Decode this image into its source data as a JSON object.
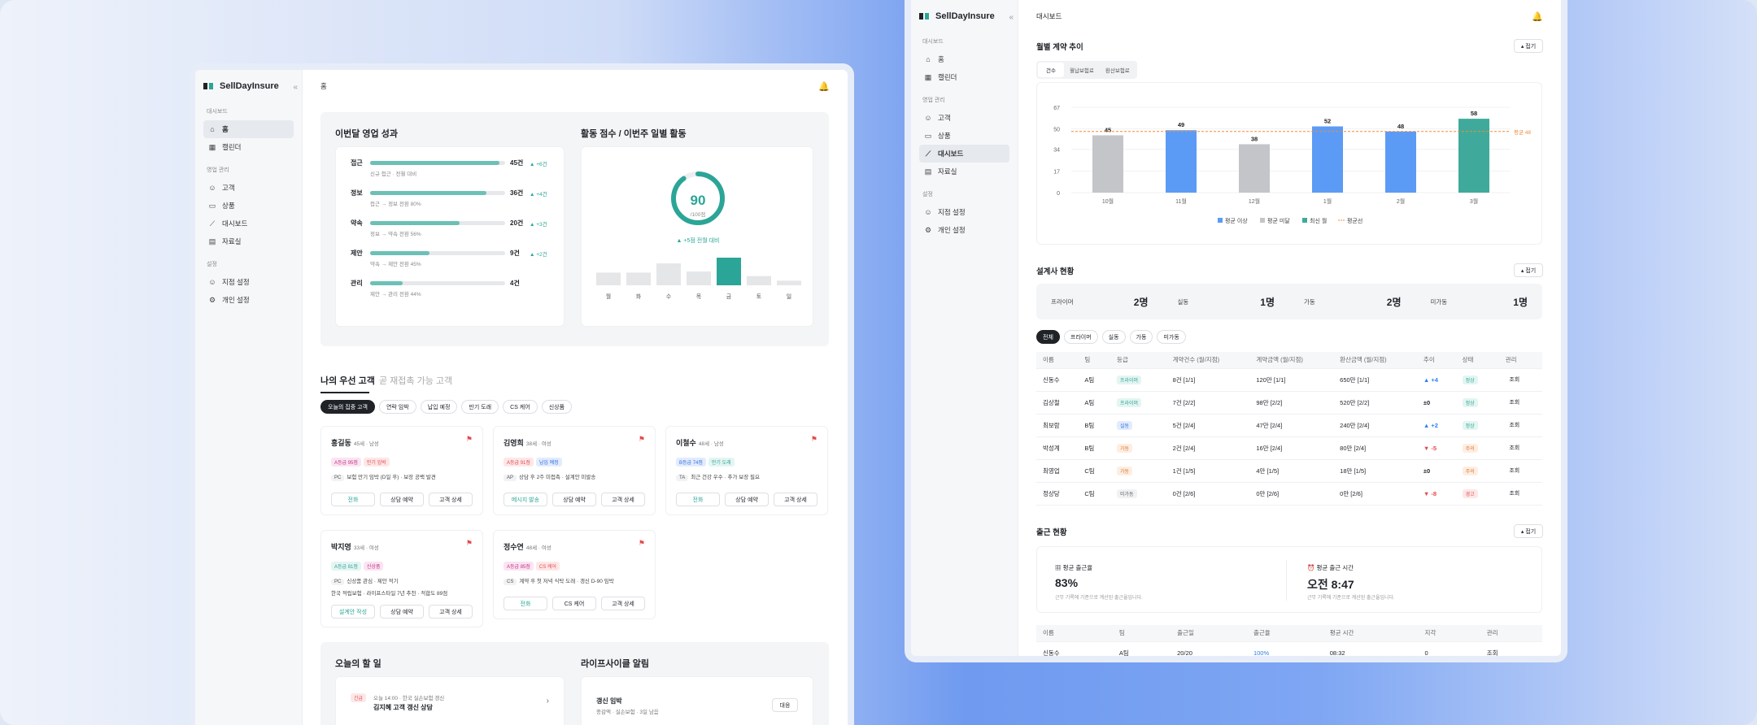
{
  "brand": "SellDayInsure",
  "sidebar": {
    "sec1": "대시보드",
    "sec2": "영업 관리",
    "sec3": "설정",
    "items_a": [
      {
        "label": "홈",
        "icon": "home-icon"
      },
      {
        "label": "캘린더",
        "icon": "calendar-icon"
      },
      {
        "label": "고객",
        "icon": "user-icon"
      },
      {
        "label": "상품",
        "icon": "book-icon"
      },
      {
        "label": "대시보드",
        "icon": "chart-icon"
      },
      {
        "label": "자료실",
        "icon": "file-icon"
      },
      {
        "label": "지점 설정",
        "icon": "user-icon"
      },
      {
        "label": "개인 설정",
        "icon": "gear-icon"
      }
    ]
  },
  "a": {
    "title": "홈",
    "perf": {
      "title": "이번달 영업 성과",
      "rows": [
        {
          "label": "접근",
          "value": "45건",
          "delta": "▲ +6건",
          "sub": "신규 접근 · 전월 대비",
          "fill": 0.96
        },
        {
          "label": "정보",
          "value": "36건",
          "delta": "▲ +4건",
          "sub": "접근 → 정보 전환 80%",
          "fill": 0.86
        },
        {
          "label": "약속",
          "value": "20건",
          "delta": "▲ +3건",
          "sub": "정보 → 약속 전환 56%",
          "fill": 0.66
        },
        {
          "label": "제안",
          "value": "9건",
          "delta": "▲ +2건",
          "sub": "약속 → 제안 전환 45%",
          "fill": 0.44
        },
        {
          "label": "관리",
          "value": "4건",
          "delta": "",
          "sub": "제안 → 관리 전환 44%",
          "fill": 0.24
        }
      ]
    },
    "activity": {
      "title": "활동 점수 / 이번주 일별 활동",
      "score": "90",
      "score_unit": "/100점",
      "score_frac": 0.9,
      "delta": "▲ +5점 전월 대비",
      "days": [
        "월",
        "화",
        "수",
        "목",
        "금",
        "토",
        "일"
      ],
      "day_vals": [
        11,
        11,
        19,
        12,
        24,
        8,
        4
      ],
      "day_max": 24
    },
    "tabs": [
      "나의 우선 고객",
      "곧 재접촉 가능 고객"
    ],
    "filters": [
      "오늘의 집중 고객",
      "연락 임박",
      "납입 예정",
      "만기 도래",
      "CS 케어",
      "신상품"
    ],
    "customers": [
      {
        "name": "홍길동",
        "meta": "45세 · 남성",
        "tags": [
          "A등급 95점",
          "만기 임박"
        ],
        "code": "PC",
        "note": "보험 만기 임박 (D일 후) · 보장 공백 발견",
        "btns": [
          "전화",
          "상담 예약",
          "고객 상세"
        ]
      },
      {
        "name": "김영희",
        "meta": "38세 · 여성",
        "tags": [
          "A등급 91점",
          "납입 예정"
        ],
        "code": "AP",
        "note": "상담 후 2주 미접촉 · 설계안 미발송",
        "btns": [
          "메시지 발송",
          "상담 예약",
          "고객 상세"
        ]
      },
      {
        "name": "이철수",
        "meta": "48세 · 남성",
        "tags": [
          "B등급 74점",
          "만기 도래"
        ],
        "code": "TA",
        "note": "최근 건강 우수 · 추가 보장 필요",
        "btns": [
          "전화",
          "상담 예약",
          "고객 상세"
        ]
      },
      {
        "name": "박지영",
        "meta": "33세 · 여성",
        "tags": [
          "A등급 81점",
          "신상품"
        ],
        "code": "PC",
        "note": "신상품 관심 · 제안 적기",
        "note2": "한국 적립보험 · 라이프스타일 7년 추천 · 적합도 89점",
        "btns": [
          "설계안 작성",
          "상담 예약",
          "고객 상세"
        ]
      },
      {
        "name": "정수연",
        "meta": "48세 · 여성",
        "tags": [
          "A등급 85점",
          "CS 케어"
        ],
        "code": "CS",
        "note": "계약 후 첫 저녁 식탁 도래 · 갱신 D-90 임박",
        "btns": [
          "전화",
          "CS 케어",
          "고객 상세"
        ]
      }
    ],
    "todo": {
      "title": "오늘의 할 일",
      "badge": "긴급",
      "time": "오늘 14:00 · 한국 실손보험 갱신",
      "task": "김지혜 고객 갱신 상담"
    },
    "life": {
      "title": "라이프사이클 알림",
      "item": "갱신 임박",
      "sub": "종감액 · 실손보험 · 3일 남음",
      "btn": "대응"
    }
  },
  "b": {
    "title": "대시보드",
    "chart_title": "월별 계약 추이",
    "fold": "접기",
    "chart_tabs": [
      "건수",
      "월납보험료",
      "환산보험료"
    ],
    "chart_data": {
      "type": "bar",
      "categories": [
        "10월",
        "11월",
        "12월",
        "1월",
        "2월",
        "3월"
      ],
      "values": [
        45,
        49,
        38,
        52,
        48,
        58
      ],
      "ylim": [
        0,
        67
      ],
      "yticks": [
        0,
        17,
        34,
        50,
        67
      ],
      "avg": 48,
      "avg_label": "평균 48",
      "legend": [
        "평균 이상",
        "평균 미달",
        "최신 월",
        "평균선"
      ],
      "colors": {
        "above": "#5b9bf5",
        "below": "#c3c5c9",
        "latest": "#3faa9b",
        "avg": "#f08a3c"
      },
      "kinds": [
        "below",
        "above",
        "below",
        "above",
        "above",
        "latest"
      ]
    },
    "planners": {
      "title": "설계사 현황",
      "stats": [
        {
          "label": "프라이머",
          "value": "2명"
        },
        {
          "label": "실동",
          "value": "1명"
        },
        {
          "label": "가동",
          "value": "2명"
        },
        {
          "label": "미가동",
          "value": "1명"
        }
      ],
      "filters": [
        "전체",
        "프라이머",
        "실동",
        "가동",
        "미가동"
      ],
      "cols": [
        "이름",
        "팀",
        "등급",
        "계약건수 (월/지점)",
        "계약금액 (월/지점)",
        "환산금액 (월/지점)",
        "추이",
        "상태",
        "관리"
      ],
      "rows": [
        [
          "신동수",
          "A팀",
          "프라이머",
          "8건 [1/1]",
          "120만 [1/1]",
          "650만 [1/1]",
          "▲ +4",
          "정상",
          "조회"
        ],
        [
          "김상철",
          "A팀",
          "프라이머",
          "7건 [2/2]",
          "98만 [2/2]",
          "520만 [2/2]",
          "±0",
          "정상",
          "조회"
        ],
        [
          "최보람",
          "B팀",
          "실동",
          "5건 [2/4]",
          "47만 [2/4]",
          "240만 [2/4]",
          "▲ +2",
          "정상",
          "조회"
        ],
        [
          "박성계",
          "B팀",
          "가동",
          "2건 [2/4]",
          "16만 [2/4]",
          "80만 [2/4]",
          "▼ -5",
          "주의",
          "조회"
        ],
        [
          "최영업",
          "C팀",
          "가동",
          "1건 [1/5]",
          "4만 [1/5]",
          "18만 [1/5]",
          "±0",
          "주의",
          "조회"
        ],
        [
          "정상당",
          "C팀",
          "미가동",
          "0건 [2/6]",
          "0만 [2/6]",
          "0만 [2/6]",
          "▼ -8",
          "경고",
          "조회"
        ]
      ]
    },
    "attend": {
      "title": "출근 현황",
      "avg_rate_label": "평균 출근율",
      "avg_rate": "83%",
      "rate_note": "근무 기록에 기준으로 계산된 출근율입니다.",
      "avg_time_label": "평균 출근 시간",
      "avg_time": "오전 8:47",
      "time_note": "근무 기록에 기준으로 계산된 출근율입니다.",
      "cols": [
        "이름",
        "팀",
        "출근일",
        "출근율",
        "평균 시간",
        "지각",
        "관리"
      ],
      "row": [
        "신동수",
        "A팀",
        "20/20",
        "100%",
        "08:32",
        "0",
        "조회"
      ]
    }
  }
}
